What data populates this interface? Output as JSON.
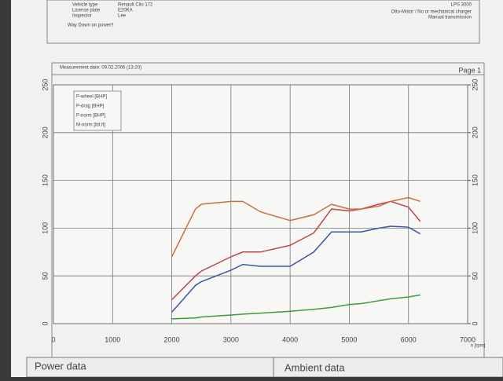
{
  "document": {
    "vehicle_label": "Vehicle type",
    "vehicle": "Renault Clio 172",
    "plate_label": "License plate",
    "plate": "E20KA",
    "inspector_label": "Inspector",
    "inspector": "Lee",
    "remark": "Way Down on power!!",
    "engine": "Otto-Motor / No or mechanical charger",
    "transmission": "Manual transmission",
    "device": "LPS 3000",
    "measurement": "Measurement date: 09.02.2006 (13:20)",
    "page": "Page 1",
    "power_data": "Power data",
    "ambient_data": "Ambient data"
  },
  "chart_data": {
    "type": "line",
    "x_label": "n [rpm]",
    "x": [
      2000,
      2400,
      2500,
      3000,
      3200,
      3500,
      4000,
      4400,
      4700,
      5000,
      5200,
      5500,
      5700,
      6000,
      6200
    ],
    "xlim": [
      0,
      7000
    ],
    "xticks": [
      0,
      1000,
      2000,
      3000,
      4000,
      5000,
      6000,
      7000
    ],
    "ylim": [
      0,
      250
    ],
    "yticks": [
      0,
      50,
      100,
      150,
      200,
      250
    ],
    "y2lim": [
      0,
      250
    ],
    "y2ticks": [
      0,
      50,
      100,
      150,
      200,
      250
    ],
    "grid": true,
    "legend": "upper left",
    "series": [
      {
        "name": "P-wheel [BHP]",
        "color": "#3f54a8",
        "values": [
          12,
          40,
          44,
          56,
          62,
          60,
          60,
          75,
          96,
          96,
          96,
          100,
          102,
          101,
          94
        ]
      },
      {
        "name": "P-drag [BHP]",
        "color": "#3c9a3c",
        "values": [
          5,
          6,
          7,
          9,
          10,
          11,
          13,
          15,
          17,
          20,
          21,
          24,
          26,
          28,
          30
        ]
      },
      {
        "name": "P-norm [BHP]",
        "color": "#c24646",
        "values": [
          25,
          50,
          55,
          70,
          75,
          75,
          82,
          95,
          120,
          118,
          120,
          125,
          128,
          122,
          107
        ]
      },
      {
        "name": "M-norm [lbf.ft]",
        "color": "#c8703f",
        "axis": "y2",
        "values": [
          70,
          120,
          125,
          128,
          128,
          117,
          108,
          114,
          125,
          120,
          120,
          123,
          128,
          132,
          128
        ]
      }
    ]
  }
}
